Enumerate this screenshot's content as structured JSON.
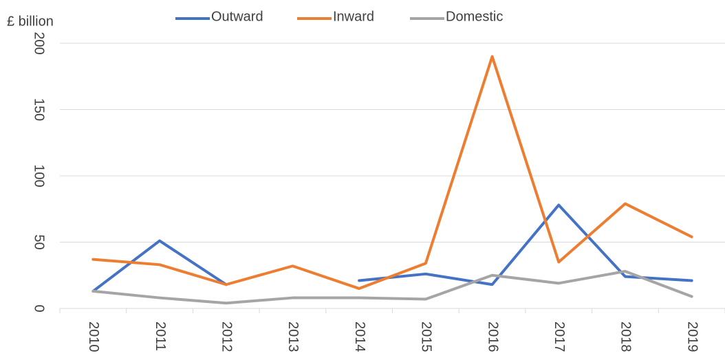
{
  "chart_data": {
    "type": "line",
    "y_label": "£ billion",
    "categories": [
      "2010",
      "2011",
      "2012",
      "2013",
      "2014",
      "2015",
      "2016",
      "2017",
      "2018",
      "2019"
    ],
    "series": [
      {
        "name": "Outward",
        "color": "#4472c4",
        "values": [
          13,
          51,
          18,
          null,
          21,
          26,
          18,
          78,
          24,
          21
        ]
      },
      {
        "name": "Inward",
        "color": "#ed7d31",
        "values": [
          37,
          33,
          18,
          32,
          15,
          34,
          190,
          35,
          79,
          54
        ]
      },
      {
        "name": "Domestic",
        "color": "#a5a5a5",
        "values": [
          13,
          8,
          4,
          8,
          8,
          7,
          25,
          19,
          28,
          9
        ]
      }
    ],
    "ylim": [
      0,
      200
    ],
    "yticks": [
      0,
      50,
      100,
      150,
      200
    ],
    "grid": true,
    "legend": "top"
  }
}
